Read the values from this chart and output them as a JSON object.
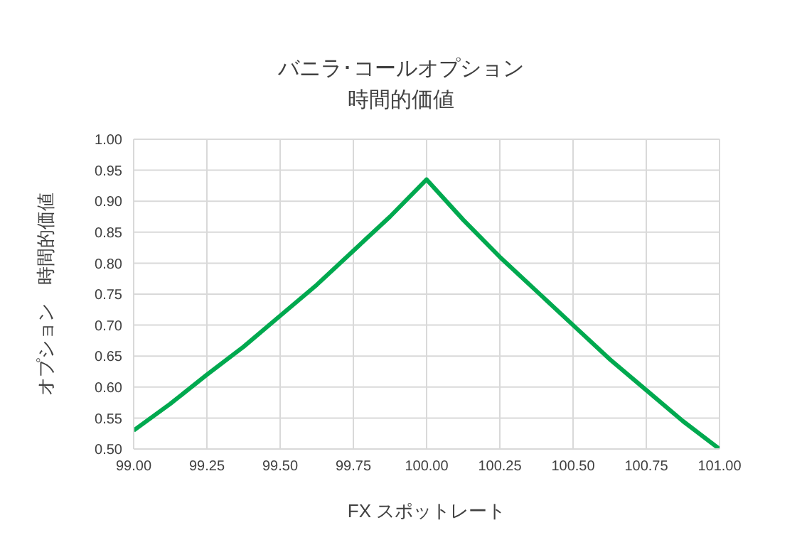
{
  "chart_data": {
    "type": "line",
    "title": "バニラ･コールオプション",
    "subtitle": "時間的価値",
    "xlabel": "FX スポットレート",
    "ylabel": "オプション　時間的価値",
    "x": [
      99,
      99.125,
      99.25,
      99.375,
      99.5,
      99.625,
      99.75,
      99.875,
      100,
      100.125,
      100.25,
      100.375,
      100.5,
      100.625,
      100.75,
      100.875,
      101
    ],
    "series": [
      {
        "color": "#00a94f",
        "values": [
          0.53,
          0.573,
          0.62,
          0.665,
          0.715,
          0.765,
          0.82,
          0.875,
          0.935,
          0.87,
          0.81,
          0.755,
          0.7,
          0.645,
          0.595,
          0.545,
          0.5
        ]
      }
    ],
    "xlim": [
      99,
      101
    ],
    "xticks": [
      {
        "value": 99,
        "label": "99.00"
      },
      {
        "value": 99.25,
        "label": "99.25"
      },
      {
        "value": 99.5,
        "label": "99.50"
      },
      {
        "value": 99.75,
        "label": "99.75"
      },
      {
        "value": 100,
        "label": "100.00"
      },
      {
        "value": 100.25,
        "label": "100.25"
      },
      {
        "value": 100.5,
        "label": "100.50"
      },
      {
        "value": 100.75,
        "label": "100.75"
      },
      {
        "value": 101,
        "label": "101.00"
      }
    ],
    "ylim": [
      0.5,
      1
    ],
    "yticks": [
      {
        "value": 0.5,
        "label": "0.50"
      },
      {
        "value": 0.55,
        "label": "0.55"
      },
      {
        "value": 0.6,
        "label": "0.60"
      },
      {
        "value": 0.65,
        "label": "0.65"
      },
      {
        "value": 0.7,
        "label": "0.70"
      },
      {
        "value": 0.75,
        "label": "0.75"
      },
      {
        "value": 0.8,
        "label": "0.80"
      },
      {
        "value": 0.85,
        "label": "0.85"
      },
      {
        "value": 0.9,
        "label": "0.90"
      },
      {
        "value": 0.95,
        "label": "0.95"
      },
      {
        "value": 1,
        "label": "1.00"
      }
    ],
    "grid": true,
    "legend": false,
    "marker": "none",
    "line_style": "solid"
  }
}
